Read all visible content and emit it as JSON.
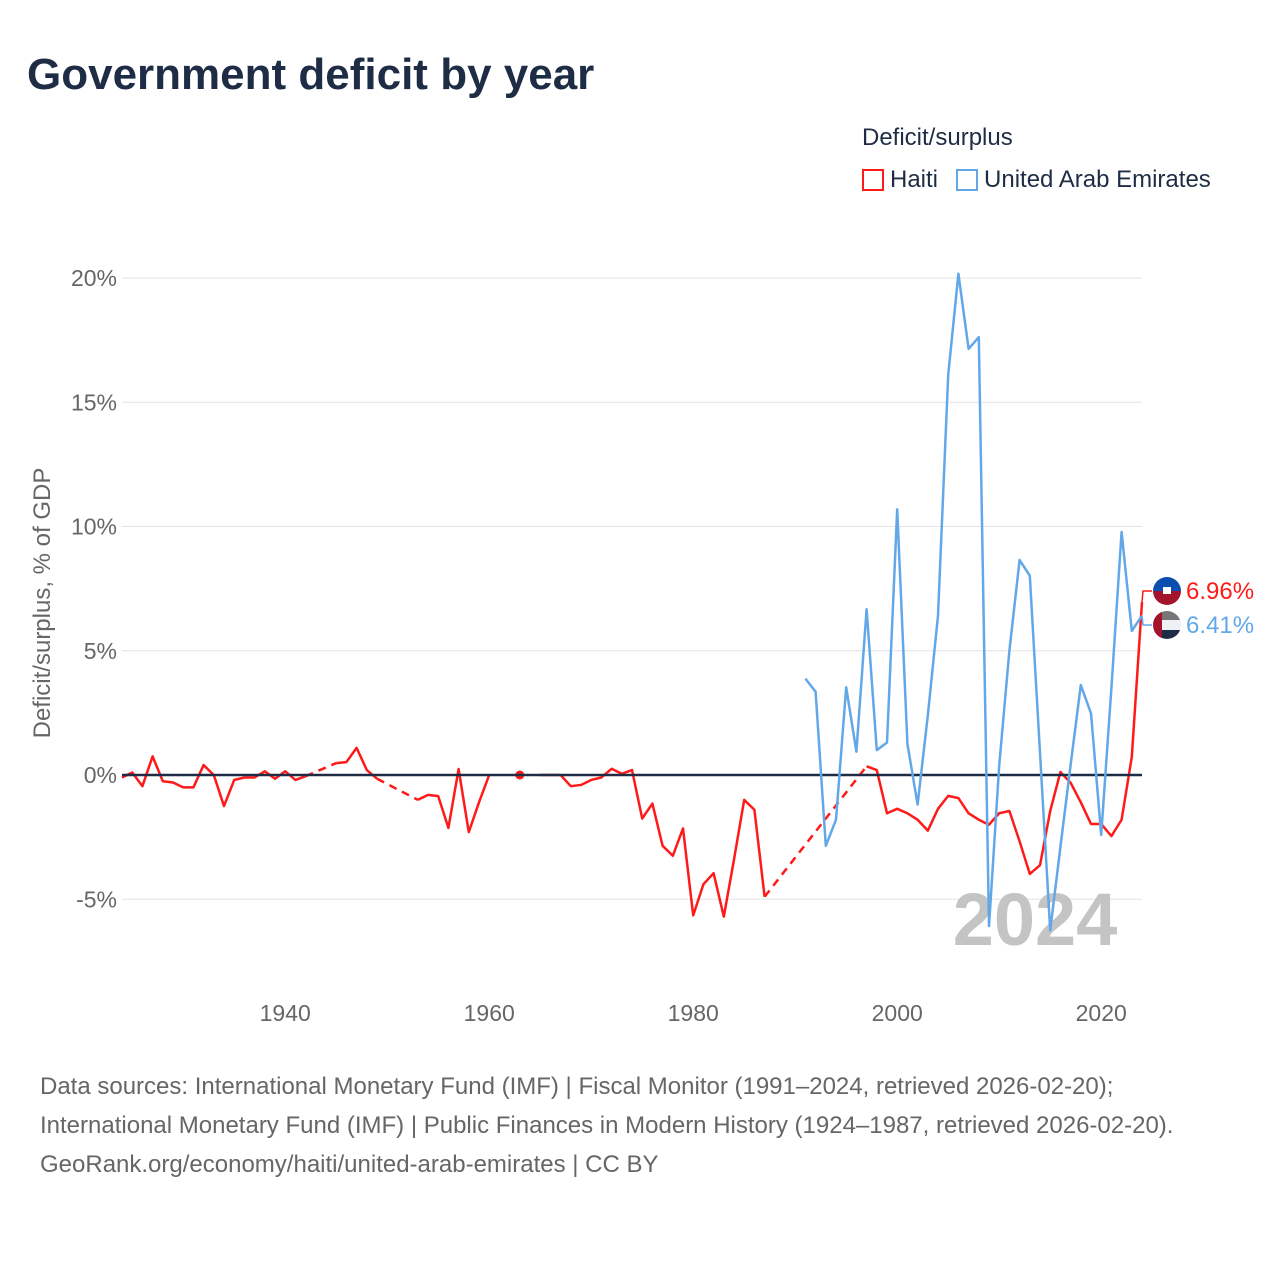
{
  "title": "Government deficit by year",
  "legend": {
    "title": "Deficit/surplus",
    "items": [
      {
        "label": "Haiti",
        "color": "#ff1a1a"
      },
      {
        "label": "United Arab Emirates",
        "color": "#62a8e8"
      }
    ]
  },
  "footer": {
    "sources": "Data sources: International Monetary Fund (IMF) | Fiscal Monitor (1991–2024, retrieved 2026-02-20); International Monetary Fund (IMF) | Public Finances in Modern History (1924–1987, retrieved 2026-02-20).",
    "credit": "GeoRank.org/economy/haiti/united-arab-emirates | CC BY"
  },
  "chart_data": {
    "type": "line",
    "title": "Government deficit by year",
    "xlabel": "",
    "ylabel": "Deficit/surplus, % of GDP",
    "xlim": [
      1924,
      2024
    ],
    "ylim": [
      -7.5,
      21
    ],
    "xticks": [
      1940,
      1960,
      1980,
      2000,
      2020
    ],
    "yticks": [
      {
        "v": -5,
        "label": "-5%"
      },
      {
        "v": 0,
        "label": "0%"
      },
      {
        "v": 5,
        "label": "5%"
      },
      {
        "v": 10,
        "label": "10%"
      },
      {
        "v": 15,
        "label": "15%"
      },
      {
        "v": 20,
        "label": "20%"
      }
    ],
    "watermark_year": "2024",
    "series": [
      {
        "name": "Haiti",
        "color": "#ff1a1a",
        "end_label": "6.96%",
        "bridged_gaps": [
          [
            1942,
            1945
          ],
          [
            1949,
            1953
          ],
          [
            1987,
            1997
          ]
        ],
        "points": [
          [
            1924,
            -0.1
          ],
          [
            1925,
            0.1
          ],
          [
            1926,
            -0.45
          ],
          [
            1927,
            0.75
          ],
          [
            1928,
            -0.25
          ],
          [
            1929,
            -0.3
          ],
          [
            1930,
            -0.5
          ],
          [
            1931,
            -0.5
          ],
          [
            1932,
            0.4
          ],
          [
            1933,
            0.0
          ],
          [
            1934,
            -1.25
          ],
          [
            1935,
            -0.2
          ],
          [
            1936,
            -0.1
          ],
          [
            1937,
            -0.1
          ],
          [
            1938,
            0.15
          ],
          [
            1939,
            -0.15
          ],
          [
            1940,
            0.15
          ],
          [
            1941,
            -0.2
          ],
          [
            1942,
            -0.05
          ],
          [
            1945,
            0.48
          ],
          [
            1946,
            0.52
          ],
          [
            1947,
            1.09
          ],
          [
            1948,
            0.2
          ],
          [
            1949,
            -0.15
          ],
          [
            1953,
            -1.0
          ],
          [
            1954,
            -0.8
          ],
          [
            1955,
            -0.85
          ],
          [
            1956,
            -2.13
          ],
          [
            1957,
            0.24
          ],
          [
            1958,
            -2.3
          ],
          [
            1959,
            -1.1
          ],
          [
            1960,
            0.0
          ],
          [
            1963,
            0.0
          ],
          [
            1965,
            0.0
          ],
          [
            1966,
            0.0
          ],
          [
            1967,
            0.0
          ],
          [
            1968,
            -0.45
          ],
          [
            1969,
            -0.4
          ],
          [
            1970,
            -0.2
          ],
          [
            1971,
            -0.1
          ],
          [
            1972,
            0.25
          ],
          [
            1973,
            0.05
          ],
          [
            1974,
            0.2
          ],
          [
            1975,
            -1.75
          ],
          [
            1976,
            -1.15
          ],
          [
            1977,
            -2.85
          ],
          [
            1978,
            -3.25
          ],
          [
            1979,
            -2.15
          ],
          [
            1980,
            -5.65
          ],
          [
            1981,
            -4.4
          ],
          [
            1982,
            -3.95
          ],
          [
            1983,
            -5.7
          ],
          [
            1984,
            -3.4
          ],
          [
            1985,
            -1.0
          ],
          [
            1986,
            -1.4
          ],
          [
            1987,
            -4.9
          ],
          [
            1997,
            0.35
          ],
          [
            1998,
            0.2
          ],
          [
            1999,
            -1.54
          ],
          [
            2000,
            -1.36
          ],
          [
            2001,
            -1.54
          ],
          [
            2002,
            -1.8
          ],
          [
            2003,
            -2.24
          ],
          [
            2004,
            -1.36
          ],
          [
            2005,
            -0.84
          ],
          [
            2006,
            -0.93
          ],
          [
            2007,
            -1.54
          ],
          [
            2008,
            -1.8
          ],
          [
            2009,
            -2.0
          ],
          [
            2010,
            -1.54
          ],
          [
            2011,
            -1.45
          ],
          [
            2012,
            -2.67
          ],
          [
            2013,
            -3.98
          ],
          [
            2014,
            -3.63
          ],
          [
            2015,
            -1.45
          ],
          [
            2016,
            0.12
          ],
          [
            2017,
            -0.31
          ],
          [
            2018,
            -1.1
          ],
          [
            2019,
            -1.97
          ],
          [
            2020,
            -1.97
          ],
          [
            2021,
            -2.46
          ],
          [
            2022,
            -1.8
          ],
          [
            2023,
            0.73
          ],
          [
            2024,
            6.96
          ]
        ]
      },
      {
        "name": "United Arab Emirates",
        "color": "#62a8e8",
        "end_label": "6.41%",
        "bridged_gaps": [],
        "points": [
          [
            1991,
            3.88
          ],
          [
            1992,
            3.35
          ],
          [
            1993,
            -2.85
          ],
          [
            1994,
            -1.8
          ],
          [
            1995,
            3.53
          ],
          [
            1996,
            0.94
          ],
          [
            1997,
            6.67
          ],
          [
            1998,
            1.0
          ],
          [
            1999,
            1.31
          ],
          [
            2000,
            10.69
          ],
          [
            2001,
            1.26
          ],
          [
            2002,
            -1.19
          ],
          [
            2003,
            2.39
          ],
          [
            2004,
            6.41
          ],
          [
            2005,
            16.1
          ],
          [
            2006,
            20.17
          ],
          [
            2007,
            17.15
          ],
          [
            2008,
            17.62
          ],
          [
            2009,
            -6.08
          ],
          [
            2010,
            0.38
          ],
          [
            2011,
            5.01
          ],
          [
            2012,
            8.65
          ],
          [
            2013,
            8.02
          ],
          [
            2014,
            0.9
          ],
          [
            2015,
            -6.25
          ],
          [
            2016,
            -2.9
          ],
          [
            2017,
            0.4
          ],
          [
            2018,
            3.62
          ],
          [
            2019,
            2.48
          ],
          [
            2020,
            -2.41
          ],
          [
            2021,
            3.5
          ],
          [
            2022,
            9.78
          ],
          [
            2023,
            5.8
          ],
          [
            2024,
            6.41
          ]
        ]
      }
    ]
  }
}
